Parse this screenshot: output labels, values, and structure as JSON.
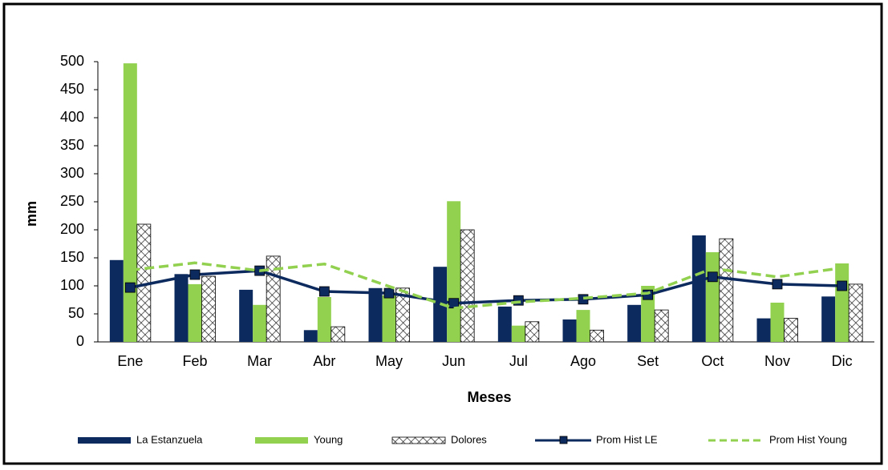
{
  "chart_data": {
    "type": "bar",
    "x_label": "Meses",
    "y_label": "mm",
    "categories": [
      "Ene",
      "Feb",
      "Mar",
      "Abr",
      "May",
      "Jun",
      "Jul",
      "Ago",
      "Set",
      "Oct",
      "Nov",
      "Dic"
    ],
    "series": [
      {
        "name": "La Estanzuela",
        "type": "bar",
        "color": "#0d2a5e",
        "values": [
          146,
          121,
          93,
          21,
          96,
          134,
          63,
          40,
          66,
          190,
          42,
          81
        ]
      },
      {
        "name": "Young",
        "type": "bar",
        "color": "#92d050",
        "values": [
          497,
          103,
          66,
          80,
          83,
          251,
          29,
          57,
          100,
          160,
          70,
          140
        ]
      },
      {
        "name": "Dolores",
        "type": "bar",
        "color": "#ffffff",
        "hatch": true,
        "values": [
          210,
          117,
          153,
          27,
          96,
          200,
          36,
          21,
          57,
          184,
          42,
          103
        ]
      },
      {
        "name": "Prom Hist LE",
        "type": "line",
        "color": "#0d2a5e",
        "marker": "square",
        "values": [
          97,
          120,
          127,
          90,
          87,
          69,
          74,
          76,
          84,
          116,
          103,
          100
        ]
      },
      {
        "name": "Prom Hist Young",
        "type": "line",
        "color": "#92d050",
        "dashed": true,
        "values": [
          128,
          141,
          127,
          139,
          99,
          60,
          71,
          78,
          87,
          131,
          116,
          132
        ]
      }
    ],
    "ylim": [
      0,
      500
    ],
    "yticks": [
      0,
      50,
      100,
      150,
      200,
      250,
      300,
      350,
      400,
      450,
      500
    ],
    "grid": false,
    "legend": "bottom"
  }
}
